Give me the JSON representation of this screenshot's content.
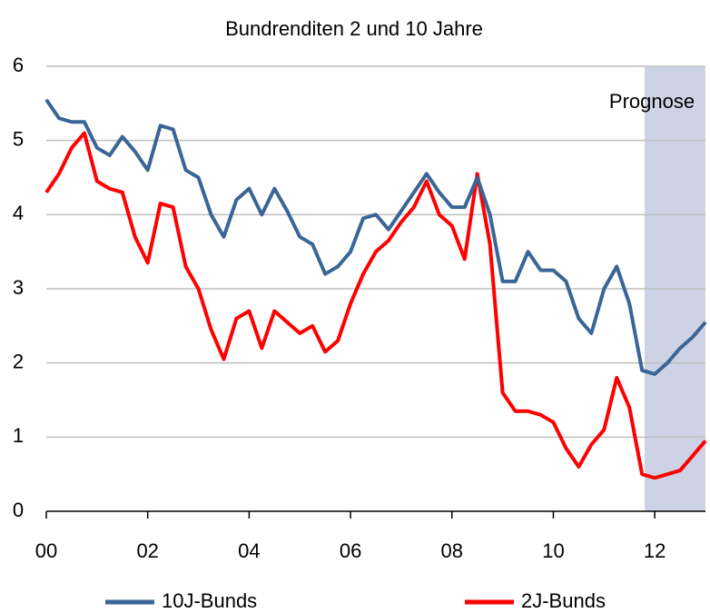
{
  "chart_data": {
    "type": "line",
    "title": "Bundrenditen 2 und 10 Jahre",
    "annotation": "Prognose",
    "forecast_start": 11.8,
    "x": [
      0,
      0.25,
      0.5,
      0.75,
      1,
      1.25,
      1.5,
      1.75,
      2,
      2.25,
      2.5,
      2.75,
      3,
      3.25,
      3.5,
      3.75,
      4,
      4.25,
      4.5,
      4.75,
      5,
      5.25,
      5.5,
      5.75,
      6,
      6.25,
      6.5,
      6.75,
      7,
      7.25,
      7.5,
      7.75,
      8,
      8.25,
      8.5,
      8.75,
      9,
      9.25,
      9.5,
      9.75,
      10,
      10.25,
      10.5,
      10.75,
      11,
      11.25,
      11.5,
      11.75,
      12,
      12.25,
      12.5,
      12.75,
      13
    ],
    "series": [
      {
        "name": "10J-Bunds",
        "color": "#3a6597",
        "values": [
          5.55,
          5.3,
          5.25,
          5.25,
          4.9,
          4.8,
          5.05,
          4.85,
          4.6,
          5.2,
          5.15,
          4.6,
          4.5,
          4.0,
          3.7,
          4.2,
          4.35,
          4.0,
          4.35,
          4.05,
          3.7,
          3.6,
          3.2,
          3.3,
          3.5,
          3.95,
          4.0,
          3.8,
          4.05,
          4.3,
          4.55,
          4.3,
          4.1,
          4.1,
          4.5,
          4.0,
          3.1,
          3.1,
          3.5,
          3.25,
          3.25,
          3.1,
          2.6,
          2.4,
          3.0,
          3.3,
          2.8,
          1.9,
          1.85,
          2.0,
          2.2,
          2.35,
          2.55
        ]
      },
      {
        "name": "2J-Bunds",
        "color": "#ff0000",
        "values": [
          4.3,
          4.55,
          4.9,
          5.1,
          4.45,
          4.35,
          4.3,
          3.7,
          3.35,
          4.15,
          4.1,
          3.3,
          3.0,
          2.45,
          2.05,
          2.6,
          2.7,
          2.2,
          2.7,
          2.55,
          2.4,
          2.5,
          2.15,
          2.3,
          2.8,
          3.2,
          3.5,
          3.65,
          3.9,
          4.1,
          4.45,
          4.0,
          3.85,
          3.4,
          4.55,
          3.6,
          1.6,
          1.35,
          1.35,
          1.3,
          1.2,
          0.85,
          0.6,
          0.9,
          1.1,
          1.8,
          1.4,
          0.5,
          0.45,
          0.5,
          0.55,
          0.75,
          0.95
        ]
      }
    ],
    "xlim": [
      0,
      13
    ],
    "xticks": [
      {
        "value": 0,
        "label": "00"
      },
      {
        "value": 2,
        "label": "02"
      },
      {
        "value": 4,
        "label": "04"
      },
      {
        "value": 6,
        "label": "06"
      },
      {
        "value": 8,
        "label": "08"
      },
      {
        "value": 10,
        "label": "10"
      },
      {
        "value": 12,
        "label": "12"
      }
    ],
    "ylim": [
      0,
      6
    ],
    "yticks": [
      0,
      1,
      2,
      3,
      4,
      5,
      6
    ],
    "grid": true
  }
}
